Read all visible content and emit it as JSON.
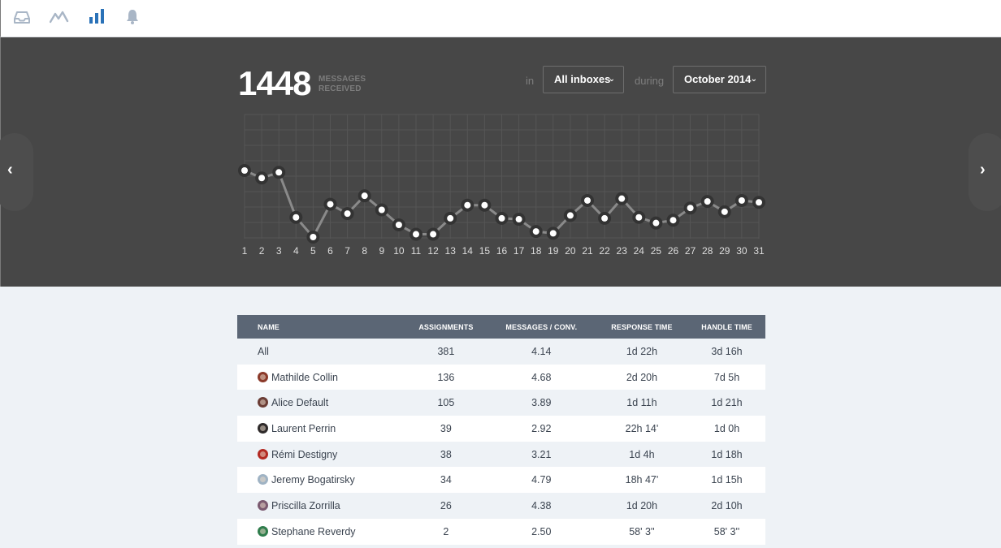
{
  "nav": {
    "icons": [
      "inbox-icon",
      "activity-icon",
      "bar-chart-icon",
      "bell-icon"
    ],
    "active_color": "#2a72b8",
    "inactive_color": "#a9b6c6"
  },
  "summary": {
    "count": "1448",
    "label_line1": "MESSAGES",
    "label_line2": "RECEIVED"
  },
  "filters": {
    "in_label": "in",
    "inbox_value": "All inboxes",
    "during_label": "during",
    "period_value": "October 2014"
  },
  "chart_data": {
    "type": "line",
    "x": [
      1,
      2,
      3,
      4,
      5,
      6,
      7,
      8,
      9,
      10,
      11,
      12,
      13,
      14,
      15,
      16,
      17,
      18,
      19,
      20,
      21,
      22,
      23,
      24,
      25,
      26,
      27,
      28,
      29,
      30,
      31
    ],
    "series": [
      {
        "values": [
          71,
          63,
          69,
          21,
          0,
          35,
          25,
          44,
          29,
          13,
          3,
          3,
          20,
          34,
          34,
          20,
          19,
          6,
          4,
          23,
          39,
          20,
          41,
          21,
          15,
          18,
          31,
          38,
          27,
          39,
          37
        ]
      }
    ],
    "xlabel": "",
    "ylabel": "",
    "grid": true,
    "line_color": "#8a8a8a",
    "point_color": "#ffffff"
  },
  "table": {
    "headers": [
      "NAME",
      "ASSIGNMENTS",
      "MESSAGES / CONV.",
      "RESPONSE TIME",
      "HANDLE TIME"
    ],
    "rows": [
      {
        "name": "All",
        "assignments": "381",
        "messages_per_conv": "4.14",
        "response_time": "1d 22h",
        "handle_time": "3d 16h",
        "avatar": "",
        "avatar_color": ""
      },
      {
        "name": "Mathilde Collin",
        "assignments": "136",
        "messages_per_conv": "4.68",
        "response_time": "2d 20h",
        "handle_time": "7d 5h",
        "avatar": "avatar",
        "avatar_color": "#8b3a2a"
      },
      {
        "name": "Alice Default",
        "assignments": "105",
        "messages_per_conv": "3.89",
        "response_time": "1d 11h",
        "handle_time": "1d 21h",
        "avatar": "avatar",
        "avatar_color": "#6b3d35"
      },
      {
        "name": "Laurent Perrin",
        "assignments": "39",
        "messages_per_conv": "2.92",
        "response_time": "22h 14'",
        "handle_time": "1d 0h",
        "avatar": "avatar",
        "avatar_color": "#2e2a2a"
      },
      {
        "name": "Rémi Destigny",
        "assignments": "38",
        "messages_per_conv": "3.21",
        "response_time": "1d 4h",
        "handle_time": "1d 18h",
        "avatar": "avatar",
        "avatar_color": "#b32a22"
      },
      {
        "name": "Jeremy Bogatirsky",
        "assignments": "34",
        "messages_per_conv": "4.79",
        "response_time": "18h 47'",
        "handle_time": "1d 15h",
        "avatar": "avatar",
        "avatar_color": "#9fb3c4"
      },
      {
        "name": "Priscilla Zorrilla",
        "assignments": "26",
        "messages_per_conv": "4.38",
        "response_time": "1d 20h",
        "handle_time": "2d 10h",
        "avatar": "avatar",
        "avatar_color": "#7b5a70"
      },
      {
        "name": "Stephane Reverdy",
        "assignments": "2",
        "messages_per_conv": "2.50",
        "response_time": "58' 3''",
        "handle_time": "58' 3''",
        "avatar": "avatar",
        "avatar_color": "#2f7d4c"
      }
    ]
  },
  "pager": {
    "prev_icon": "chevron-left-icon",
    "next_icon": "chevron-right-icon",
    "prev_glyph": "‹",
    "next_glyph": "›"
  }
}
